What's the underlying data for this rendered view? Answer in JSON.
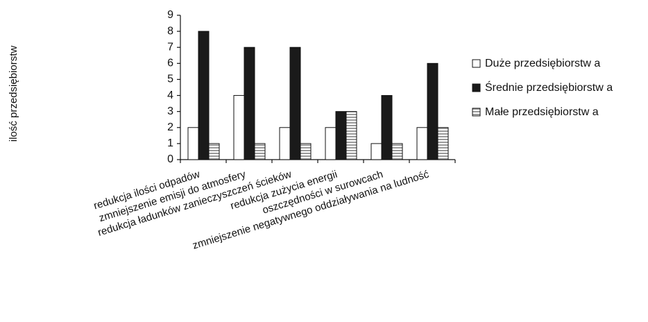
{
  "chart_data": {
    "type": "bar",
    "ylabel": "ilość przedsiębiorstw",
    "xlabel": "",
    "ylim": [
      0,
      9
    ],
    "yticks": [
      0,
      1,
      2,
      3,
      4,
      5,
      6,
      7,
      8,
      9
    ],
    "categories": [
      "redukcja ilości odpadów",
      "zmniejszenie emisji do atmosfery",
      "redukcja ładunków zanieczyszczeń ścieków",
      "redukcja zużycia energii",
      "oszczędności w surowcach",
      "zmniejszenie negatywnego oddziaływania na ludność"
    ],
    "series": [
      {
        "name": "Duże przedsiębiorstw a",
        "values": [
          2,
          4,
          2,
          2,
          1,
          2
        ],
        "fill": "white"
      },
      {
        "name": "Średnie przedsiębiorstw a",
        "values": [
          8,
          7,
          7,
          3,
          4,
          6
        ],
        "fill": "black"
      },
      {
        "name": "Małe przedsiębiorstw a",
        "values": [
          1,
          1,
          1,
          3,
          1,
          2
        ],
        "fill": "striped"
      }
    ],
    "grid": false,
    "legend": "right"
  },
  "colors": {
    "outline": "#111111",
    "dark": "#1a1a1a",
    "light": "#ffffff",
    "stripe": "#9a9a9a"
  }
}
